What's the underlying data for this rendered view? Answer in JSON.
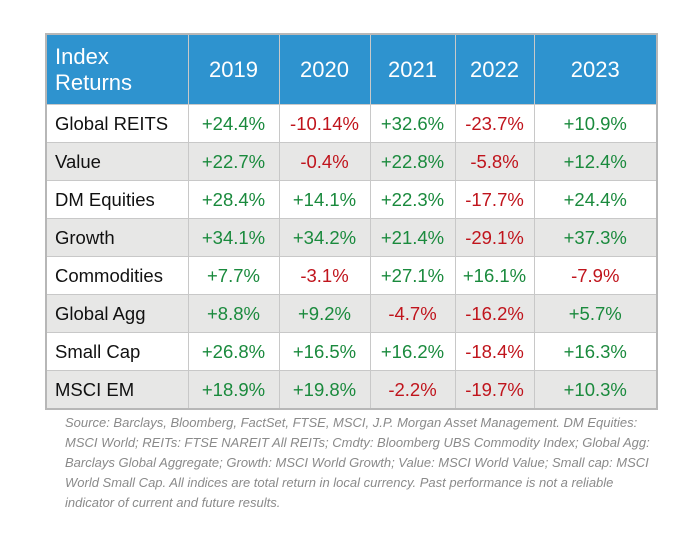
{
  "chart_data": {
    "type": "table",
    "header": {
      "label": "Index Returns",
      "years": [
        "2019",
        "2020",
        "2021",
        "2022",
        "2023"
      ]
    },
    "rows": [
      {
        "name": "Global REITS",
        "values": [
          "+24.4%",
          "-10.14%",
          "+32.6%",
          "-23.7%",
          "+10.9%"
        ]
      },
      {
        "name": "Value",
        "values": [
          "+22.7%",
          "-0.4%",
          "+22.8%",
          "-5.8%",
          "+12.4%"
        ]
      },
      {
        "name": "DM Equities",
        "values": [
          "+28.4%",
          "+14.1%",
          "+22.3%",
          "-17.7%",
          "+24.4%"
        ]
      },
      {
        "name": "Growth",
        "values": [
          "+34.1%",
          "+34.2%",
          "+21.4%",
          "-29.1%",
          "+37.3%"
        ]
      },
      {
        "name": "Commodities",
        "values": [
          "+7.7%",
          "-3.1%",
          "+27.1%",
          "+16.1%",
          "-7.9%"
        ]
      },
      {
        "name": "Global Agg",
        "values": [
          "+8.8%",
          "+9.2%",
          "-4.7%",
          "-16.2%",
          "+5.7%"
        ]
      },
      {
        "name": "Small Cap",
        "values": [
          "+26.8%",
          "+16.5%",
          "+16.2%",
          "-18.4%",
          "+16.3%"
        ]
      },
      {
        "name": "MSCI EM",
        "values": [
          "+18.9%",
          "+19.8%",
          "-2.2%",
          "-19.7%",
          "+10.3%"
        ]
      }
    ]
  },
  "source_note": "Source: Barclays, Bloomberg, FactSet, FTSE, MSCI, J.P. Morgan Asset Management. DM Equities: MSCI World; REITs: FTSE NAREIT All REITs; Cmdty: Bloomberg UBS Commodity Index; Global Agg: Barclays Global Aggregate; Growth: MSCI World Growth; Value: MSCI World Value; Small cap: MSCI World Small Cap. All indices are total return in local currency. Past performance is not a reliable indicator of current and future results.",
  "colors": {
    "header_bg": "#2e93cf",
    "header_text": "#ffffff",
    "positive": "#1a8a3d",
    "negative": "#c0141c",
    "stripe": "#e7e7e6",
    "note_text": "#8a8a8a"
  }
}
